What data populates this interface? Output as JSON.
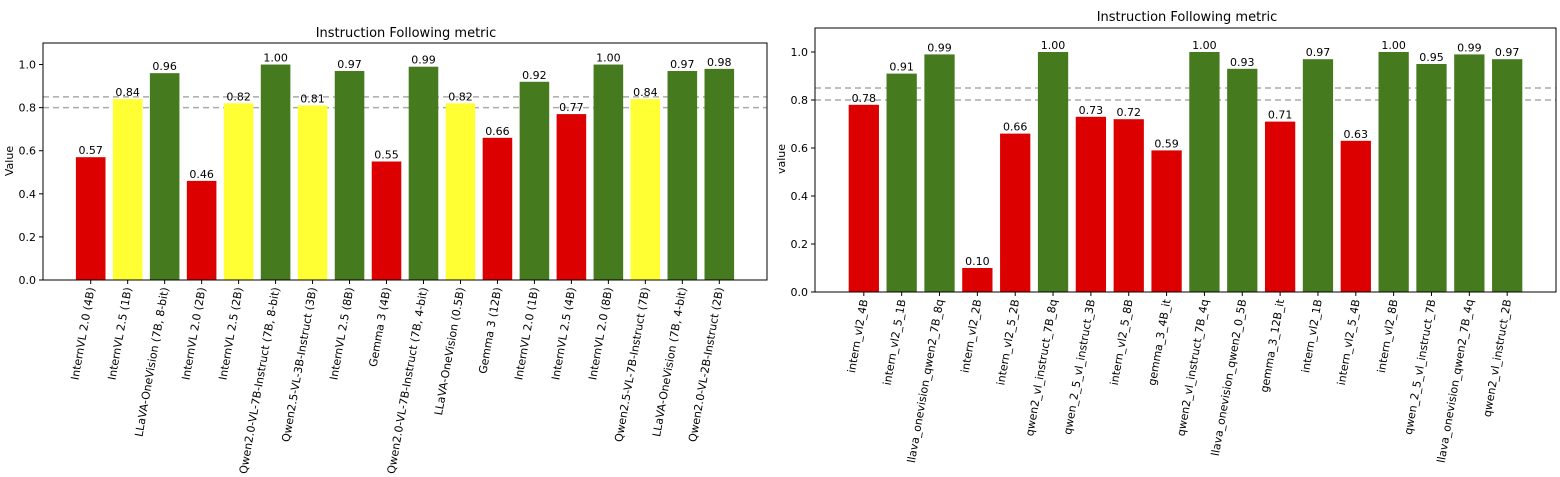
{
  "colors": {
    "red": "#dd0000",
    "yellow": "#ffff33",
    "green": "#467a1e",
    "threshold": "#aaaaaa"
  },
  "chart_data": [
    {
      "type": "bar",
      "title": "Instruction Following metric",
      "xlabel": "",
      "ylabel": "Value",
      "ylim": [
        0,
        1.1
      ],
      "yticks": [
        "0.0",
        "0.2",
        "0.4",
        "0.6",
        "0.8",
        "1.0"
      ],
      "thresholds": [
        0.8,
        0.85
      ],
      "categories": [
        "InternVL 2.0 (4B)",
        "InternVL 2.5 (1B)",
        "LLaVA-OneVision (7B, 8-bit)",
        "InternVL 2.0 (2B)",
        "InternVL 2.5 (2B)",
        "Qwen2.0-VL-7B-Instruct (7B, 8-bit)",
        "Qwen2.5-VL-3B-Instruct (3B)",
        "InternVL 2.5 (8B)",
        "Gemma 3 (4B)",
        "Qwen2.0-VL-7B-Instruct (7B, 4-bit)",
        "LLaVA-OneVision (0.5B)",
        "Gemma 3 (12B)",
        "InternVL 2.0 (1B)",
        "InternVL 2.5 (4B)",
        "InternVL 2.0 (8B)",
        "Qwen2.5-VL-7B-Instruct (7B)",
        "LLaVA-OneVision (7B, 4-bit)",
        "Qwen2.0-VL-2B-Instruct (2B)"
      ],
      "values": [
        0.57,
        0.84,
        0.96,
        0.46,
        0.82,
        1.0,
        0.81,
        0.97,
        0.55,
        0.99,
        0.82,
        0.66,
        0.92,
        0.77,
        1.0,
        0.84,
        0.97,
        0.98
      ],
      "value_labels": [
        "0.57",
        "0.84",
        "0.96",
        "0.46",
        "0.82",
        "1.00",
        "0.81",
        "0.97",
        "0.55",
        "0.99",
        "0.82",
        "0.66",
        "0.92",
        "0.77",
        "1.00",
        "0.84",
        "0.97",
        "0.98"
      ],
      "bar_colors": [
        "red",
        "yellow",
        "green",
        "red",
        "yellow",
        "green",
        "yellow",
        "green",
        "red",
        "green",
        "yellow",
        "red",
        "green",
        "red",
        "green",
        "yellow",
        "green",
        "green"
      ]
    },
    {
      "type": "bar",
      "title": "Instruction Following metric",
      "xlabel": "",
      "ylabel": "value",
      "ylim": [
        0,
        1.1
      ],
      "yticks": [
        "0.0",
        "0.2",
        "0.4",
        "0.6",
        "0.8",
        "1.0"
      ],
      "thresholds": [
        0.8,
        0.85
      ],
      "categories": [
        "intern_vl2_4B",
        "intern_vl2_5_1B",
        "llava_onevision_qwen2_7B_8q",
        "intern_vl2_2B",
        "intern_vl2_5_2B",
        "qwen2_vl_instruct_7B_8q",
        "qwen_2_5_vl_instruct_3B",
        "intern_vl2_5_8B",
        "gemma_3_4B_it",
        "qwen2_vl_instruct_7B_4q",
        "llava_onevision_qwen2_0_5B",
        "gemma_3_12B_it",
        "intern_vl2_1B",
        "intern_vl2_5_4B",
        "intern_vl2_8B",
        "qwen_2_5_vl_instruct_7B",
        "llava_onevision_qwen2_7B_4q",
        "qwen2_vl_instruct_2B"
      ],
      "values": [
        0.78,
        0.91,
        0.99,
        0.1,
        0.66,
        1.0,
        0.73,
        0.72,
        0.59,
        1.0,
        0.93,
        0.71,
        0.97,
        0.63,
        1.0,
        0.95,
        0.99,
        0.97
      ],
      "value_labels": [
        "0.78",
        "0.91",
        "0.99",
        "0.10",
        "0.66",
        "1.00",
        "0.73",
        "0.72",
        "0.59",
        "1.00",
        "0.93",
        "0.71",
        "0.97",
        "0.63",
        "1.00",
        "0.95",
        "0.99",
        "0.97"
      ],
      "bar_colors": [
        "red",
        "green",
        "green",
        "red",
        "red",
        "green",
        "red",
        "red",
        "red",
        "green",
        "green",
        "red",
        "green",
        "red",
        "green",
        "green",
        "green",
        "green"
      ]
    }
  ]
}
